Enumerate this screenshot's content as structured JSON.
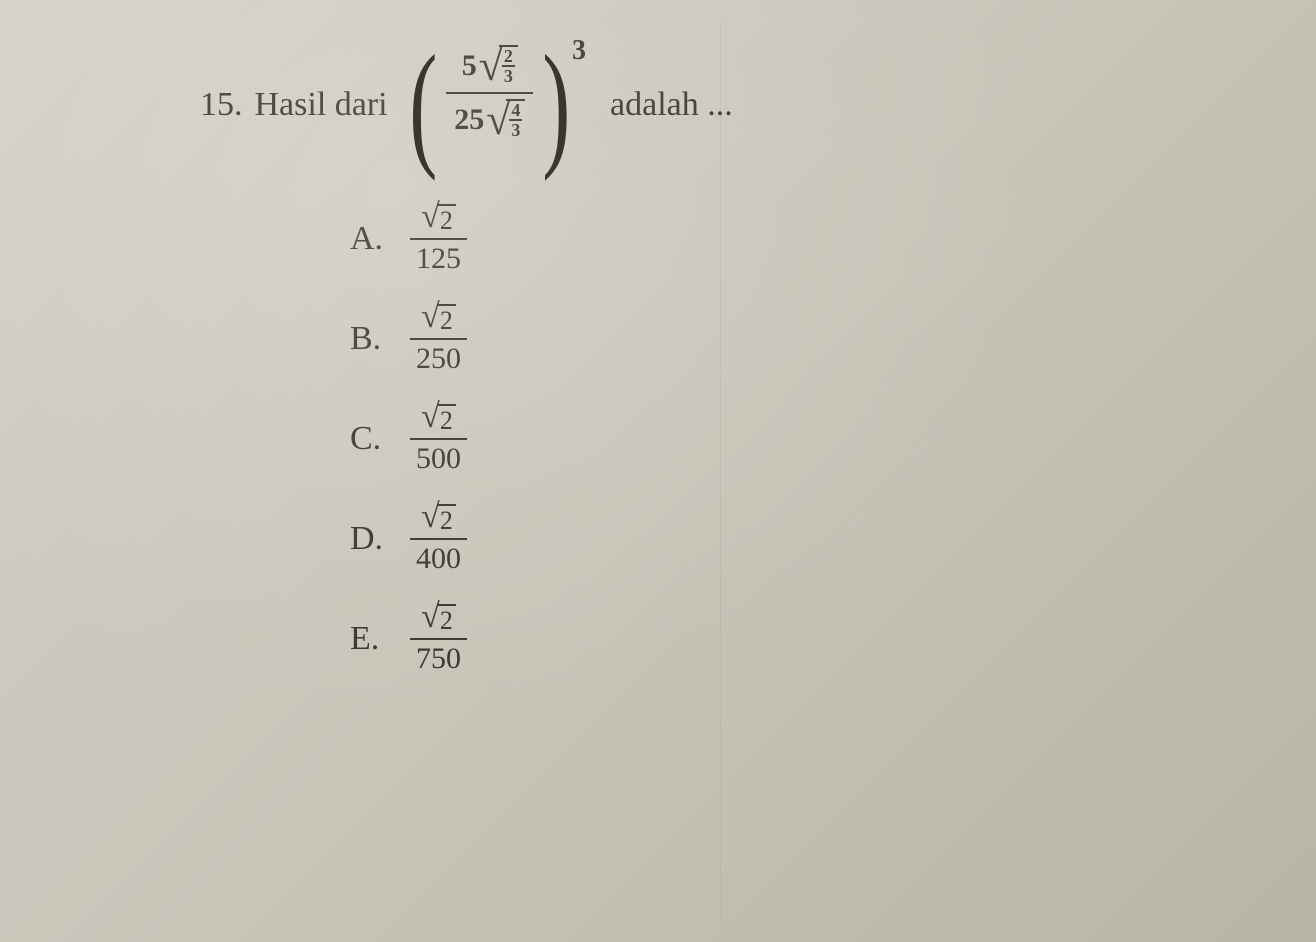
{
  "question": {
    "number": "15.",
    "text_before": "Hasil dari",
    "text_after": "adalah ...",
    "expression": {
      "exponent": "3",
      "numerator": {
        "coeff": "5",
        "sqrt_frac_num": "2",
        "sqrt_frac_den": "3"
      },
      "denominator": {
        "coeff": "25",
        "sqrt_frac_num": "4",
        "sqrt_frac_den": "3"
      }
    }
  },
  "answers": {
    "A": {
      "label": "A.",
      "sqrt_radicand": "2",
      "denominator": "125"
    },
    "B": {
      "label": "B.",
      "sqrt_radicand": "2",
      "denominator": "250"
    },
    "C": {
      "label": "C.",
      "sqrt_radicand": "2",
      "denominator": "500"
    },
    "D": {
      "label": "D.",
      "sqrt_radicand": "2",
      "denominator": "400"
    },
    "E": {
      "label": "E.",
      "sqrt_radicand": "2",
      "denominator": "750"
    }
  },
  "styling": {
    "background_colors": [
      "#d4d0c8",
      "#c8c4b8",
      "#b8b4a8"
    ],
    "text_color": "#3a3530",
    "font_family": "Times New Roman",
    "question_fontsize": 34,
    "answer_fontsize": 34,
    "fraction_fontsize": 30,
    "small_fraction_fontsize": 18,
    "exponent_fontsize": 28,
    "paren_fontsize": 140,
    "divider_color": "rgba(100,100,100,0.08)"
  }
}
